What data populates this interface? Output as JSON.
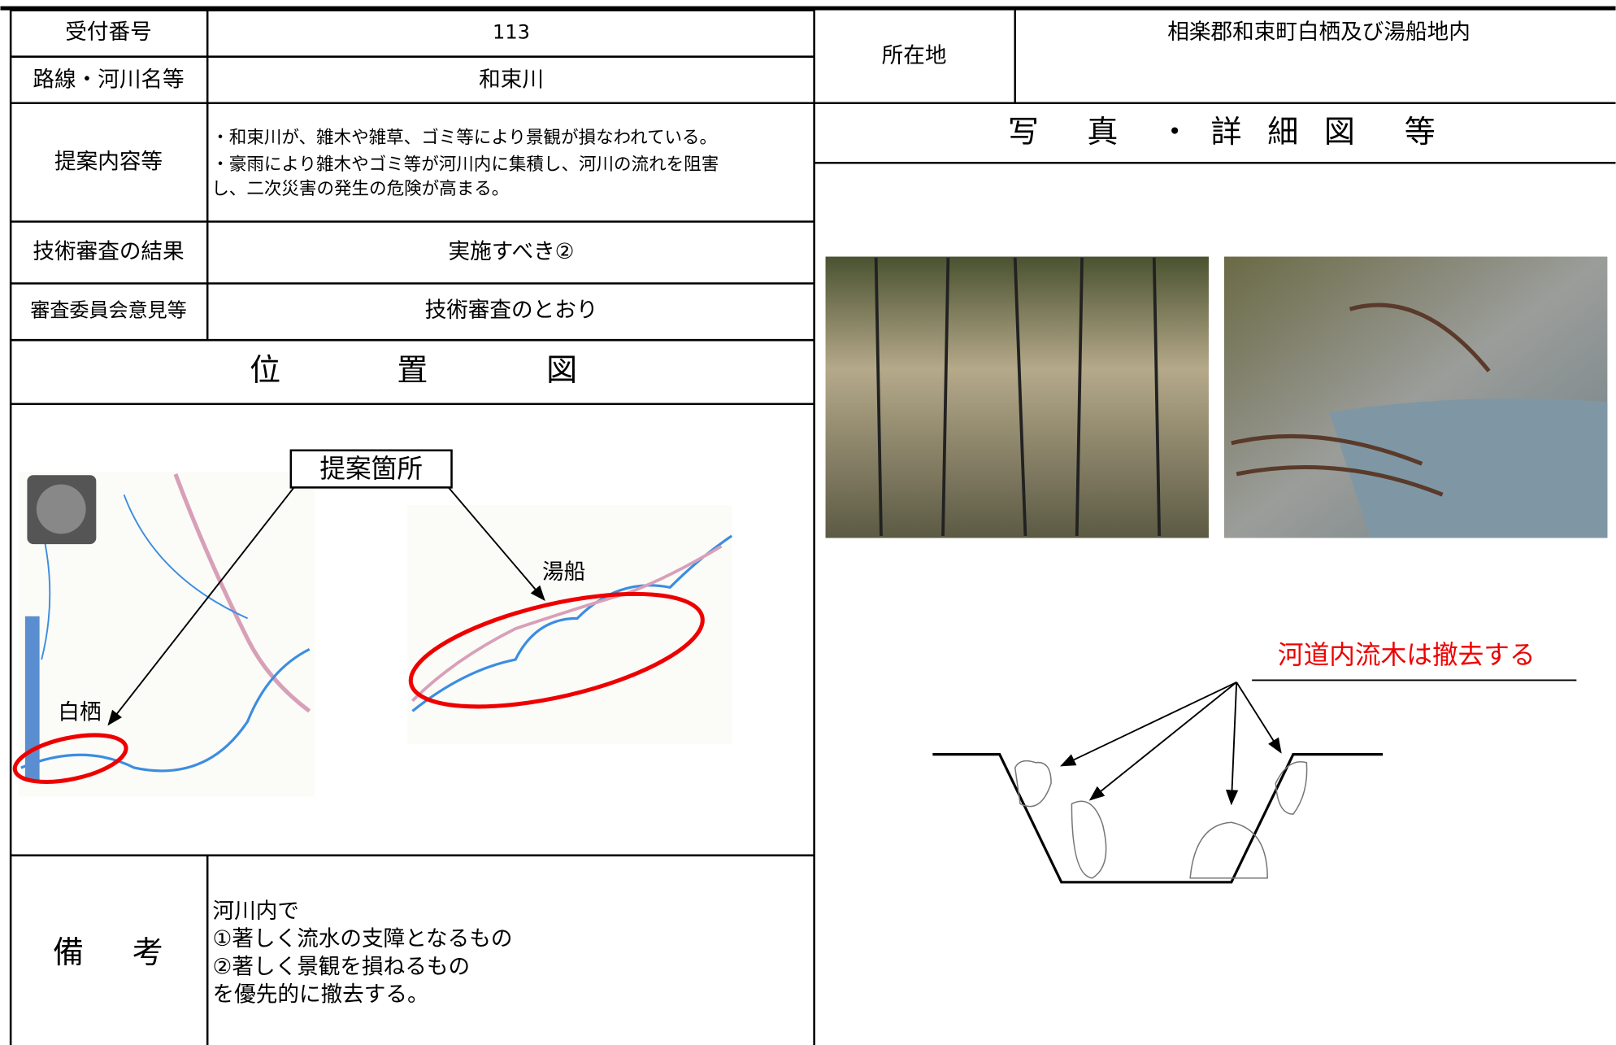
{
  "fields": [
    {
      "label": "受付番号",
      "value": "113"
    },
    {
      "label": "路線・河川名等",
      "value": "和束川"
    },
    {
      "label": "提案内容等",
      "lines": [
        "・和束川が、雑木や雑草、ゴミ等により景観が損なわれている。",
        "・豪雨により雑木やゴミ等が河川内に集積し、河川の流れを阻害",
        "し、二次災害の発生の危険が高まる。"
      ]
    },
    {
      "label": "技術審査の結果",
      "value": "実施すべき②"
    },
    {
      "label": "審査委員会意見等",
      "value": "技術審査のとおり"
    }
  ],
  "location": {
    "label": "所在地",
    "value": "相楽郡和束町白栖及び湯船地内"
  },
  "photo_title": [
    "写",
    "真",
    "・",
    "詳",
    "細",
    "図",
    "等"
  ],
  "map": {
    "title": [
      "位",
      "置",
      "図"
    ],
    "callout": "提案箇所",
    "places": [
      "白栖",
      "湯船"
    ]
  },
  "diagram": {
    "label": "河道内流木は撤去する"
  },
  "remarks": {
    "label": [
      "備",
      "考"
    ],
    "lines": [
      "河川内で",
      "①著しく流水の支障となるもの",
      "②著しく景観を損ねるもの",
      "を優先的に撤去する。"
    ]
  }
}
